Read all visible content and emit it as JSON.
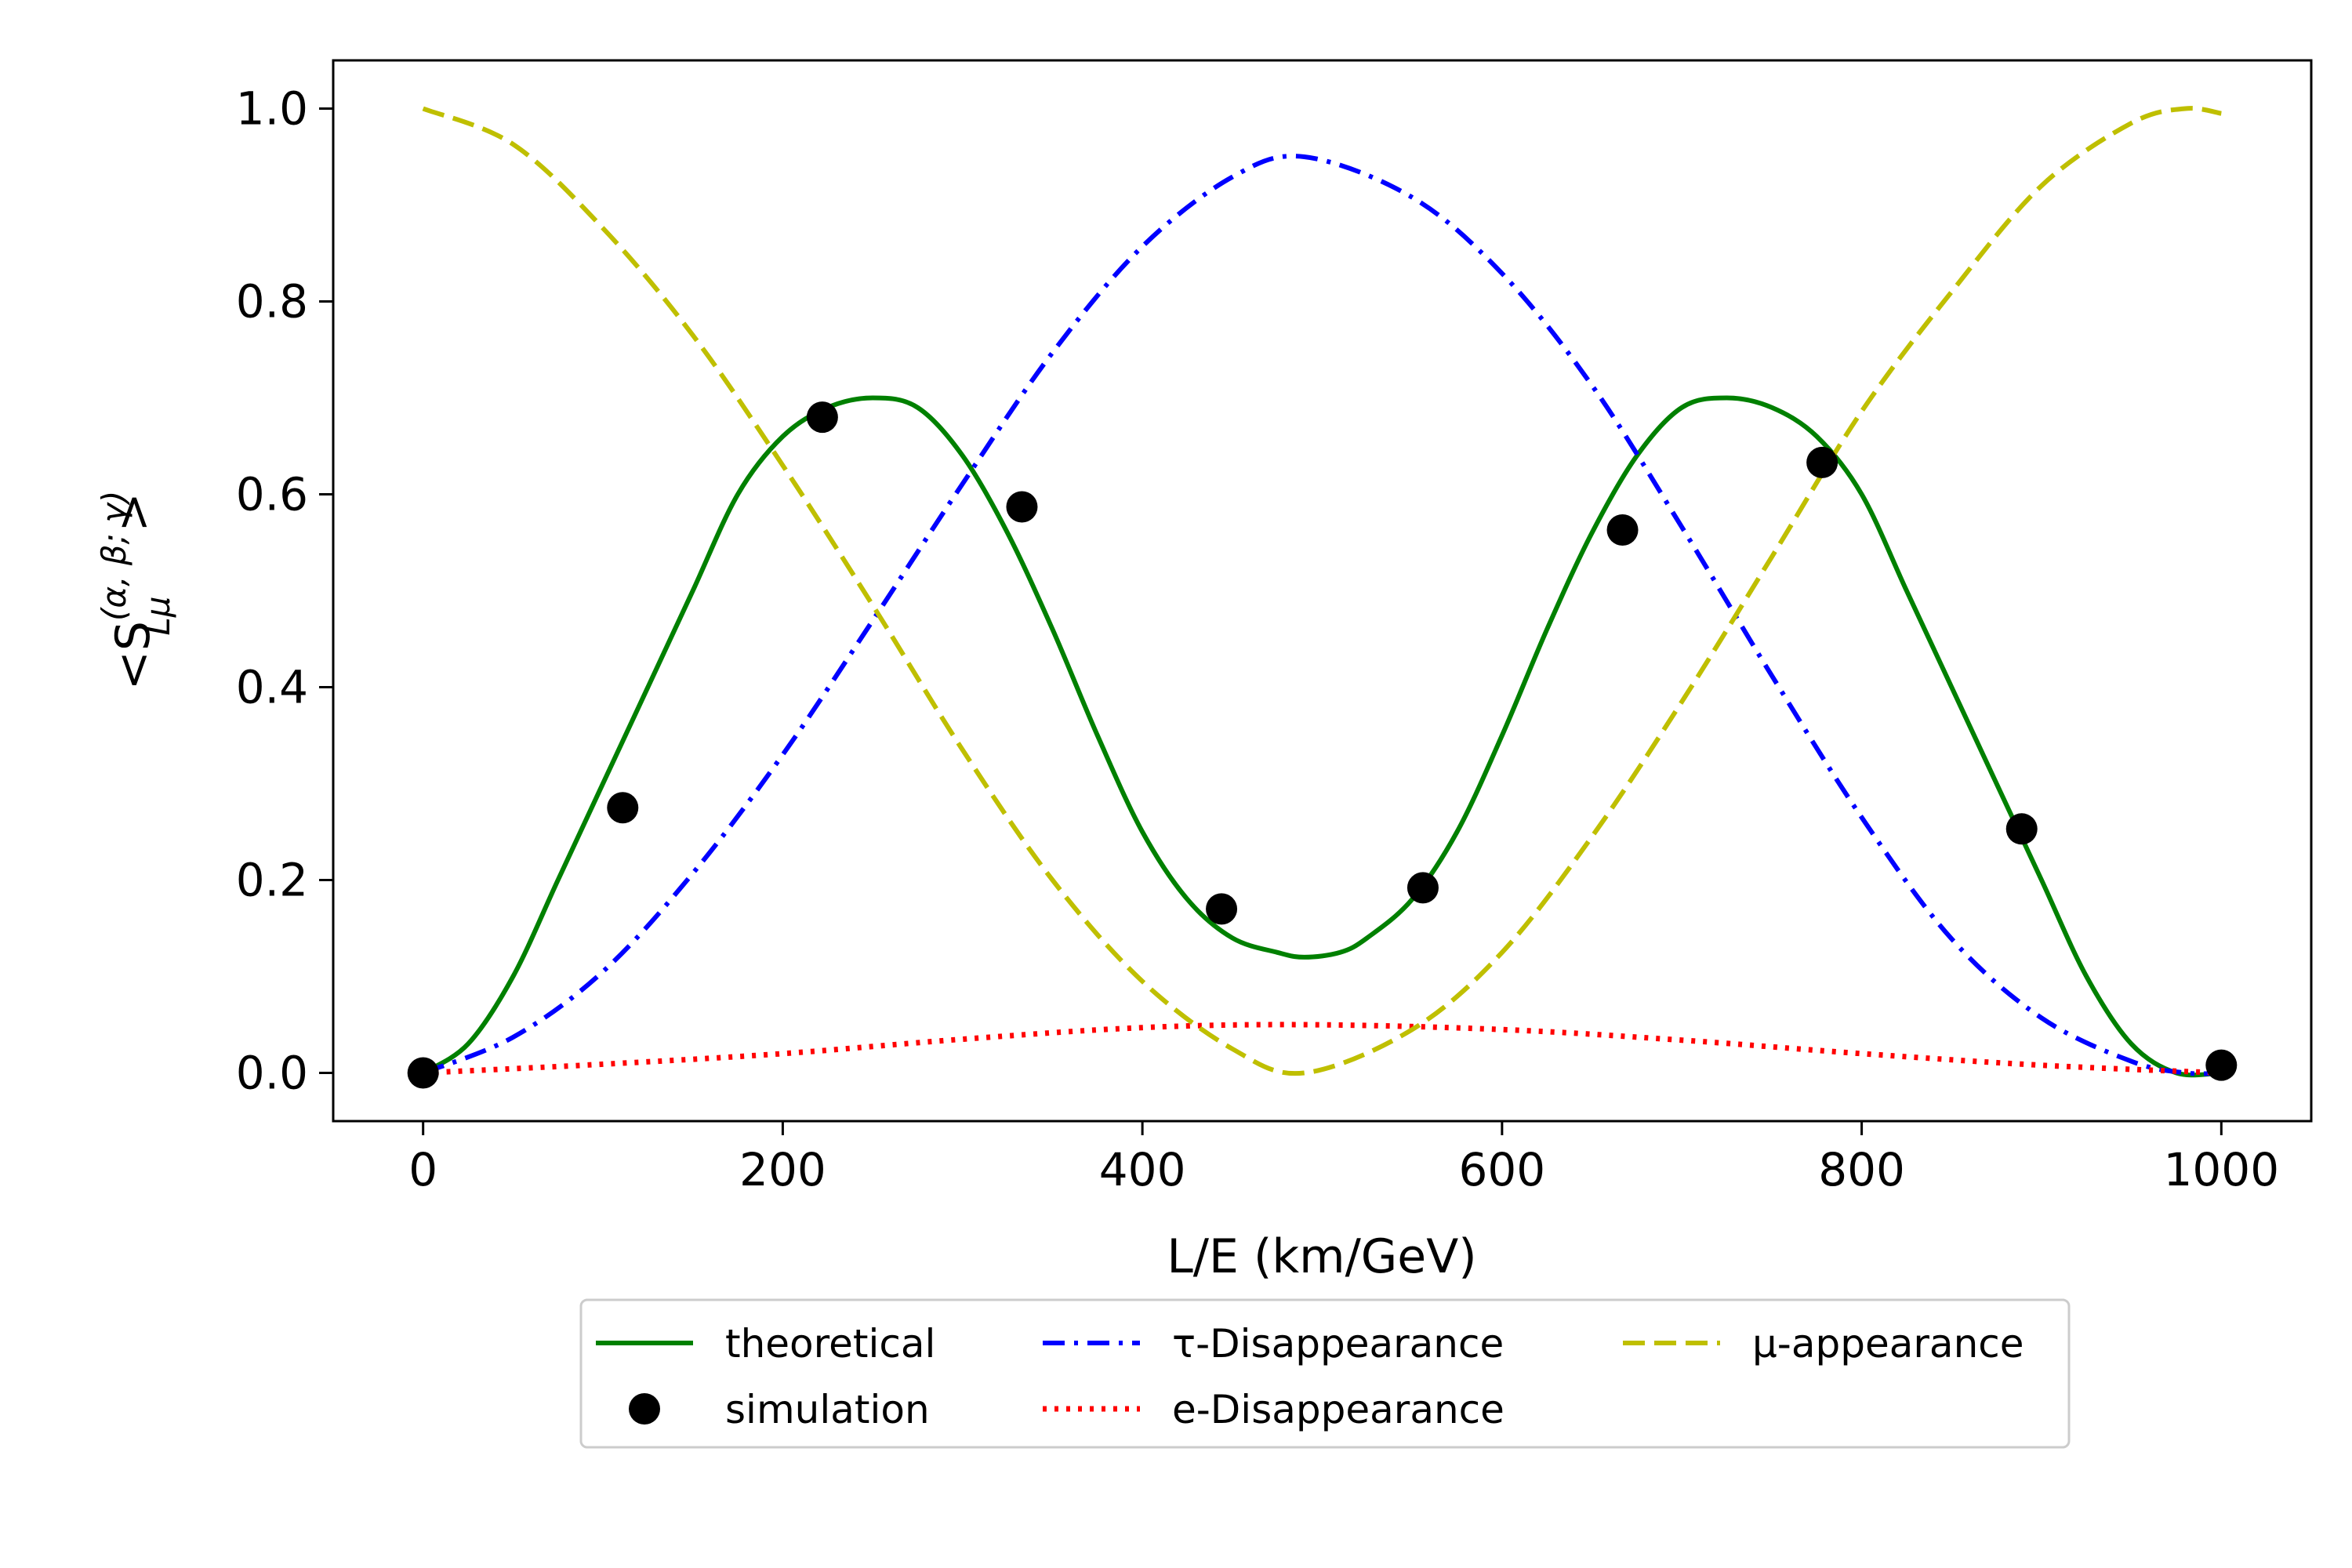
{
  "chart_data": {
    "type": "line",
    "xlabel": "L/E (km/GeV)",
    "ylabel": {
      "prefix": "<S",
      "superscript": "(α, β; γ)",
      "subscript": "Lμ",
      "suffix": ">"
    },
    "xlim": [
      -50,
      1050
    ],
    "ylim": [
      -0.05,
      1.05
    ],
    "xticks": [
      0,
      200,
      400,
      600,
      800,
      1000
    ],
    "yticks": [
      0.0,
      0.2,
      0.4,
      0.6,
      0.8,
      1.0
    ],
    "xtick_labels": [
      "0",
      "200",
      "400",
      "600",
      "800",
      "1000"
    ],
    "ytick_labels": [
      "0.0",
      "0.2",
      "0.4",
      "0.6",
      "0.8",
      "1.0"
    ],
    "grid": false,
    "legend_position": "bottom-center, below plot",
    "series": [
      {
        "name": "theoretical",
        "style": "solid",
        "color": "#008000",
        "x": [
          0,
          25,
          50,
          75,
          100,
          125,
          150,
          175,
          200,
          225,
          250,
          275,
          300,
          325,
          350,
          375,
          400,
          425,
          450,
          475,
          490,
          510,
          525,
          550,
          575,
          600,
          625,
          650,
          675,
          700,
          725,
          750,
          775,
          800,
          825,
          850,
          875,
          900,
          925,
          950,
          975,
          1000
        ],
        "y": [
          0.0,
          0.03,
          0.1,
          0.2,
          0.3,
          0.4,
          0.5,
          0.6,
          0.66,
          0.69,
          0.7,
          0.69,
          0.64,
          0.56,
          0.46,
          0.35,
          0.25,
          0.18,
          0.14,
          0.125,
          0.12,
          0.125,
          0.14,
          0.18,
          0.25,
          0.35,
          0.46,
          0.56,
          0.64,
          0.69,
          0.7,
          0.69,
          0.66,
          0.6,
          0.5,
          0.4,
          0.3,
          0.2,
          0.1,
          0.03,
          0.0,
          0.0
        ]
      },
      {
        "name": "simulation",
        "style": "markers",
        "color": "#000000",
        "x": [
          0,
          111,
          222,
          333,
          444,
          556,
          667,
          778,
          889,
          1000
        ],
        "y": [
          0.0,
          0.275,
          0.68,
          0.587,
          0.17,
          0.192,
          0.563,
          0.633,
          0.253,
          0.008
        ]
      },
      {
        "name": "τ-Disappearance",
        "style": "dashdot",
        "color": "#0000ff",
        "x": [
          0,
          50,
          100,
          150,
          200,
          250,
          300,
          350,
          400,
          450,
          490,
          550,
          600,
          650,
          700,
          750,
          800,
          850,
          900,
          950,
          980,
          1000
        ],
        "y": [
          0.0,
          0.037,
          0.105,
          0.207,
          0.33,
          0.469,
          0.611,
          0.747,
          0.857,
          0.929,
          0.95,
          0.908,
          0.829,
          0.713,
          0.566,
          0.412,
          0.265,
          0.139,
          0.057,
          0.012,
          0.0,
          0.0
        ]
      },
      {
        "name": "e-Disappearance",
        "style": "dotted",
        "color": "#ff0000",
        "x": [
          0,
          100,
          200,
          300,
          400,
          490,
          600,
          700,
          800,
          900,
          1000
        ],
        "y": [
          0.0,
          0.009,
          0.02,
          0.035,
          0.047,
          0.05,
          0.045,
          0.034,
          0.02,
          0.008,
          0.0
        ]
      },
      {
        "name": "μ-appearance",
        "style": "dashed",
        "color": "#bfbf00",
        "x": [
          0,
          50,
          100,
          150,
          200,
          250,
          300,
          350,
          400,
          450,
          490,
          550,
          600,
          650,
          700,
          750,
          800,
          850,
          900,
          950,
          980,
          1000
        ],
        "y": [
          1.0,
          0.963,
          0.876,
          0.765,
          0.63,
          0.485,
          0.335,
          0.2,
          0.095,
          0.025,
          0.0,
          0.045,
          0.125,
          0.245,
          0.385,
          0.535,
          0.686,
          0.81,
          0.92,
          0.985,
          1.0,
          0.995
        ]
      }
    ]
  }
}
